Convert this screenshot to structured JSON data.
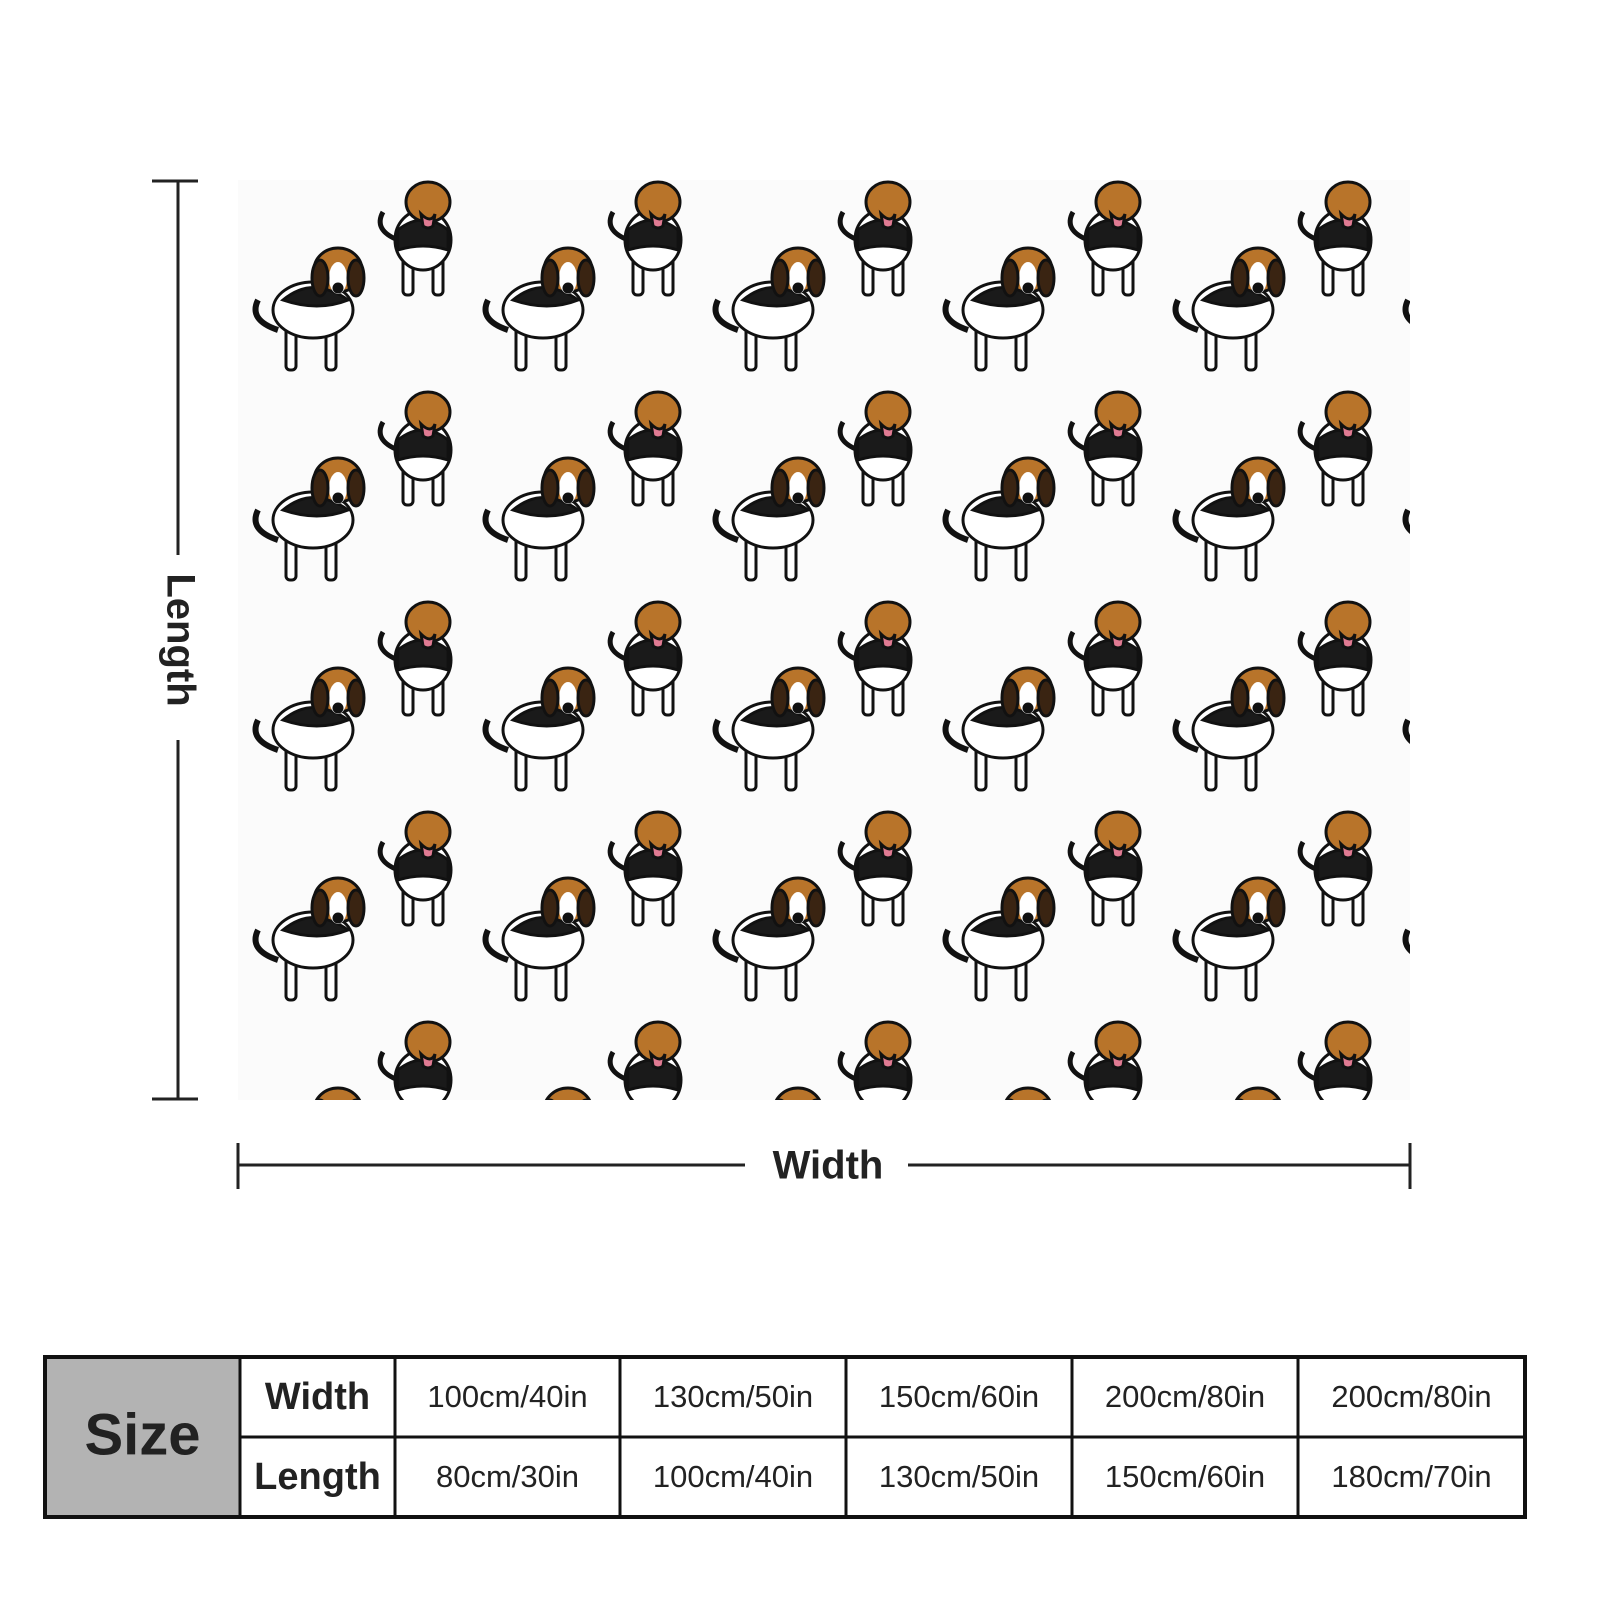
{
  "dimensions": {
    "length": "Length",
    "width": "Width"
  },
  "size_table": {
    "title": "Size",
    "rows": [
      [
        "Width",
        "100cm/40in",
        "130cm/50in",
        "150cm/60in",
        "200cm/80in",
        "200cm/80in"
      ],
      [
        "Length",
        "80cm/30in",
        "100cm/40in",
        "130cm/50in",
        "150cm/60in",
        "180cm/70in"
      ]
    ]
  }
}
